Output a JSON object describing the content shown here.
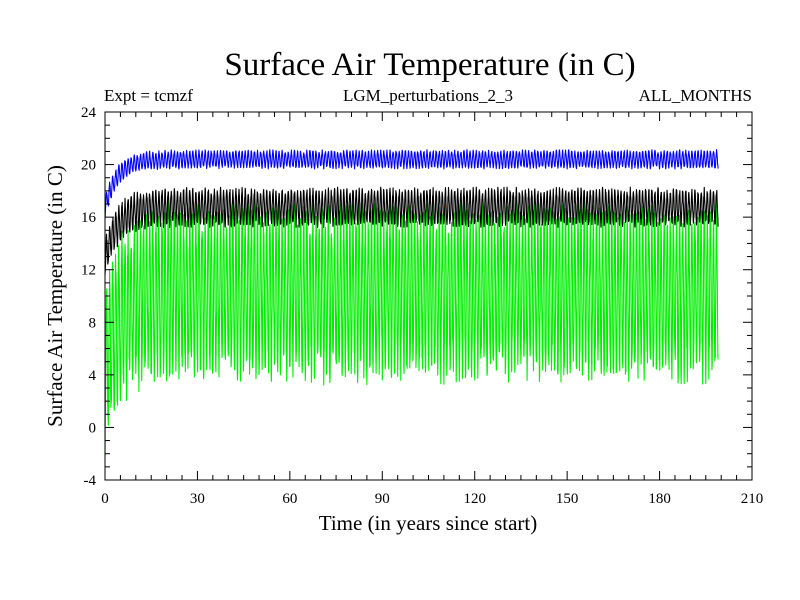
{
  "chart_data": {
    "type": "line",
    "title": "Surface Air Temperature (in C)",
    "header_left": "Expt = tcmzf",
    "header_center": "LGM_perturbations_2_3",
    "header_right": "ALL_MONTHS",
    "xlabel": "Time (in years since start)",
    "ylabel": "Surface Air Temperature (in C)",
    "xlim": [
      0,
      210
    ],
    "ylim": [
      -4,
      24
    ],
    "x_ticks": [
      0,
      30,
      60,
      90,
      120,
      150,
      180,
      210
    ],
    "y_ticks": [
      -4,
      0,
      4,
      8,
      12,
      16,
      20,
      24
    ],
    "x_minor_step": 5,
    "y_minor_step": 1,
    "grid": false,
    "series": [
      {
        "name": "green monthly series",
        "color": "#00ee00",
        "x_range_years": [
          0,
          199
        ],
        "annual_max_start": 10,
        "annual_max_plateau": 16,
        "annual_min_start": -1,
        "annual_min_plateau": 4.5,
        "spinup_years": 15
      },
      {
        "name": "black monthly series",
        "color": "#000000",
        "x_range_years": [
          0,
          199
        ],
        "annual_max_start": 14,
        "annual_max_plateau": 18,
        "annual_min_start": 11.5,
        "annual_min_plateau": 15.5,
        "spinup_years": 12
      },
      {
        "name": "blue monthly series",
        "color": "#0000ff",
        "x_range_years": [
          0,
          199
        ],
        "annual_max_start": 17.5,
        "annual_max_plateau": 21,
        "annual_min_start": 16,
        "annual_min_plateau": 19.8,
        "spinup_years": 12
      }
    ]
  }
}
